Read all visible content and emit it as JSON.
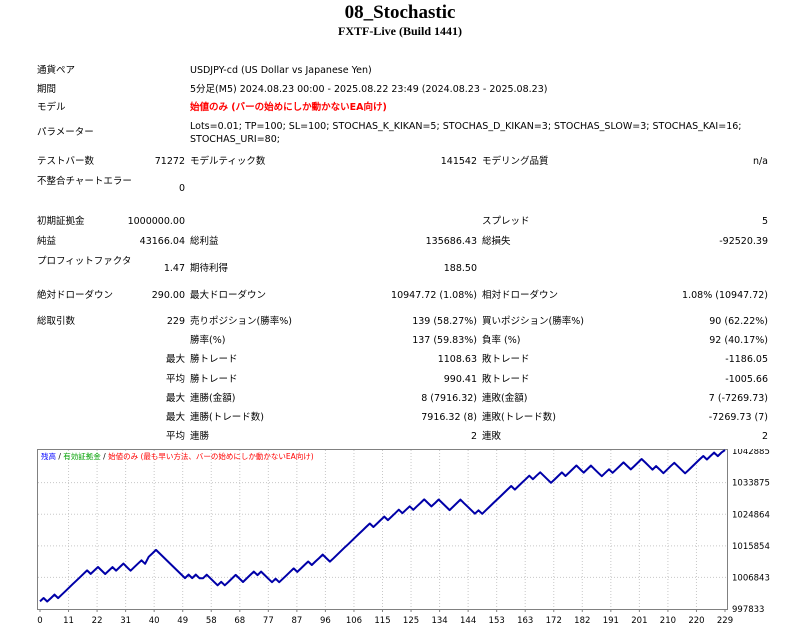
{
  "report": {
    "title": "08_Stochastic",
    "subtitle": "FXTF-Live (Build 1441)"
  },
  "settings": {
    "pair_label": "通貨ペア",
    "pair_value": "USDJPY-cd (US Dollar vs Japanese Yen)",
    "period_label": "期間",
    "period_value": "5分足(M5) 2024.08.23 00:00 - 2025.08.22 23:49 (2024.08.23 - 2025.08.23)",
    "model_label": "モデル",
    "model_value": "始値のみ (バーの始めにしか動かないEA向け)",
    "params_label": "パラメーター",
    "params_value": "Lots=0.01; TP=100; SL=100; STOCHAS_K_KIKAN=5; STOCHAS_D_KIKAN=3; STOCHAS_SLOW=3; STOCHAS_KAI=16; STOCHAS_URI=80;"
  },
  "test": {
    "bars_label": "テストバー数",
    "bars_value": "71272",
    "ticks_label": "モデルティック数",
    "ticks_value": "141542",
    "quality_label": "モデリング品質",
    "quality_value": "n/a",
    "mismatch_label": "不整合チャートエラー",
    "mismatch_value": "0"
  },
  "results": {
    "deposit_label": "初期証拠金",
    "deposit_value": "1000000.00",
    "spread_label": "スプレッド",
    "spread_value": "5",
    "net_label": "純益",
    "net_value": "43166.04",
    "gross_profit_label": "総利益",
    "gross_profit_value": "135686.43",
    "gross_loss_label": "総損失",
    "gross_loss_value": "-92520.39",
    "pf_label": "プロフィットファクタ",
    "pf_value": "1.47",
    "expected_label": "期待利得",
    "expected_value": "188.50",
    "abs_dd_label": "絶対ドローダウン",
    "abs_dd_value": "290.00",
    "max_dd_label": "最大ドローダウン",
    "max_dd_value": "10947.72 (1.08%)",
    "rel_dd_label": "相対ドローダウン",
    "rel_dd_value": "1.08% (10947.72)"
  },
  "trades": {
    "total_label": "総取引数",
    "total_value": "229",
    "short_label": "売りポジション(勝率%)",
    "short_value": "139 (58.27%)",
    "long_label": "買いポジション(勝率%)",
    "long_value": "90 (62.22%)",
    "win_pct_label": "勝率(%)",
    "win_pct_value": "137 (59.83%)",
    "loss_pct_label": "負率 (%)",
    "loss_pct_value": "92 (40.17%)",
    "max_label": "最大",
    "avg_label": "平均",
    "win_trade_label": "勝トレード",
    "loss_trade_label": "敗トレード",
    "max_win_value": "1108.63",
    "max_loss_value": "-1186.05",
    "avg_win_value": "990.41",
    "avg_loss_value": "-1005.66",
    "consec_win_amt_label": "連勝(金額)",
    "consec_win_amt_value": "8 (7916.32)",
    "consec_loss_amt_label": "連敗(金額)",
    "consec_loss_amt_value": "7 (-7269.73)",
    "consec_win_cnt_label": "連勝(トレード数)",
    "consec_win_cnt_value": "7916.32 (8)",
    "consec_loss_cnt_label": "連敗(トレード数)",
    "consec_loss_cnt_value": "-7269.73 (7)",
    "avg_consec_win_label": "連勝",
    "avg_consec_win_value": "2",
    "avg_consec_loss_label": "連敗",
    "avg_consec_loss_value": "2"
  },
  "colors": {
    "line": "#0000a8",
    "grid": "#c8c8c8",
    "legend_balance": "#0000ff",
    "legend_equity": "#00a000",
    "legend_lots": "#ff0000"
  },
  "chart_data": {
    "type": "line",
    "legend": [
      {
        "text": "残高",
        "color": "#0000ff"
      },
      {
        "text": " / ",
        "color": "#000000"
      },
      {
        "text": "有効証拠金",
        "color": "#00a000"
      },
      {
        "text": " / ",
        "color": "#000000"
      },
      {
        "text": "始値のみ (最も早い方法、バーの始めにしか動かないEA向け)",
        "color": "#ff0000"
      }
    ],
    "x_ticks": [
      "0",
      "11",
      "22",
      "31",
      "40",
      "49",
      "58",
      "68",
      "77",
      "87",
      "96",
      "106",
      "115",
      "125",
      "134",
      "144",
      "153",
      "163",
      "172",
      "182",
      "191",
      "201",
      "210",
      "220",
      "229"
    ],
    "y_ticks": [
      "1042885",
      "1033875",
      "1024864",
      "1015854",
      "1006843",
      "997833"
    ],
    "y_tick_values": [
      1042885,
      1033875,
      1024864,
      1015854,
      1006843,
      997833
    ],
    "ylim": [
      997833,
      1043200
    ],
    "xlim": [
      0,
      229
    ],
    "series": [
      {
        "values": [
          1000000,
          1000970,
          999960,
          1000950,
          1001940,
          1000935,
          1001925,
          1002915,
          1003905,
          1004895,
          1005885,
          1006875,
          1007865,
          1008855,
          1007850,
          1008840,
          1009830,
          1008825,
          1007820,
          1008810,
          1009800,
          1008795,
          1009785,
          1010775,
          1009770,
          1008765,
          1009755,
          1010745,
          1011735,
          1010730,
          1012720,
          1013710,
          1014700,
          1013695,
          1012690,
          1011685,
          1010680,
          1009675,
          1008670,
          1007665,
          1006660,
          1007650,
          1006645,
          1007635,
          1006630,
          1006625,
          1007615,
          1006610,
          1005605,
          1004600,
          1005590,
          1004585,
          1005575,
          1006565,
          1007555,
          1006550,
          1005545,
          1006535,
          1007525,
          1008515,
          1007510,
          1008500,
          1007495,
          1006490,
          1005485,
          1006475,
          1005470,
          1006460,
          1007450,
          1008440,
          1009430,
          1008425,
          1009415,
          1010405,
          1011395,
          1010390,
          1011380,
          1012370,
          1013360,
          1012355,
          1011350,
          1012340,
          1013330,
          1014320,
          1015310,
          1016300,
          1017290,
          1018280,
          1019270,
          1020260,
          1021250,
          1022240,
          1021235,
          1022225,
          1023215,
          1024205,
          1023200,
          1024190,
          1025180,
          1026170,
          1025165,
          1026155,
          1027145,
          1026140,
          1027130,
          1028120,
          1029110,
          1028105,
          1027100,
          1028090,
          1029080,
          1028075,
          1027070,
          1026065,
          1027055,
          1028045,
          1029035,
          1028030,
          1027025,
          1026020,
          1025015,
          1026005,
          1024995,
          1025985,
          1026975,
          1027965,
          1028955,
          1029945,
          1030935,
          1031925,
          1032915,
          1031910,
          1032900,
          1033890,
          1034880,
          1035870,
          1034865,
          1035855,
          1036845,
          1035840,
          1034835,
          1033830,
          1034820,
          1035810,
          1036800,
          1035795,
          1036785,
          1037775,
          1038765,
          1037760,
          1036755,
          1037745,
          1038735,
          1037730,
          1036725,
          1035720,
          1036710,
          1037700,
          1036695,
          1037685,
          1038675,
          1039665,
          1038660,
          1037655,
          1038645,
          1039635,
          1040625,
          1039620,
          1038615,
          1037610,
          1038600,
          1037595,
          1036590,
          1037580,
          1038570,
          1039560,
          1038555,
          1037550,
          1036545,
          1037535,
          1038525,
          1039515,
          1040505,
          1041495,
          1040490,
          1041480,
          1042470,
          1041465,
          1042455,
          1043166
        ]
      }
    ]
  }
}
